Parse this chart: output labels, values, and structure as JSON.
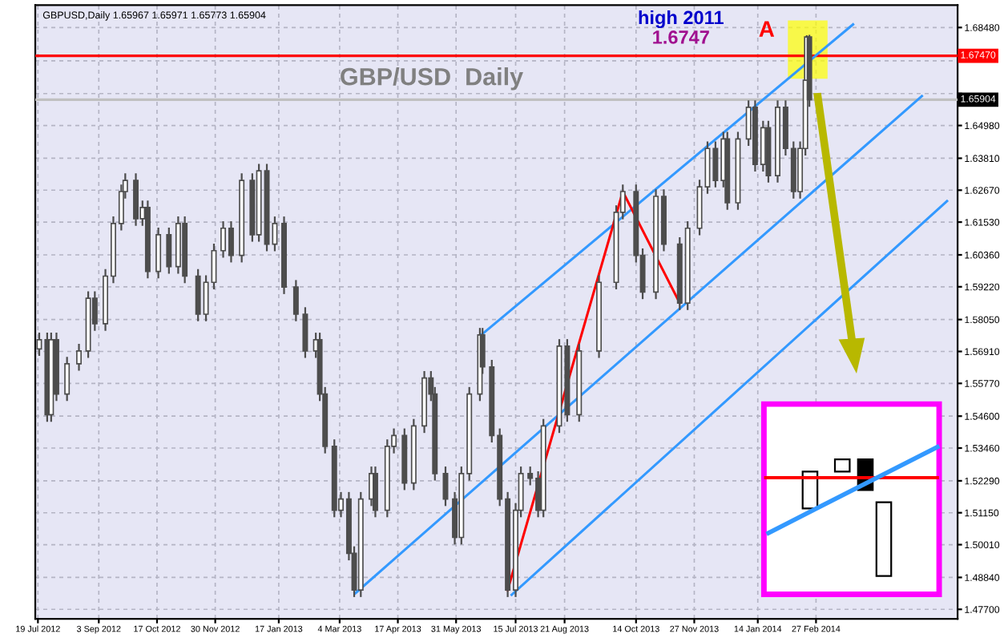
{
  "chart_data": {
    "type": "candlestick",
    "title": "GBP/USD  Daily",
    "subtitle": "GBPUSD,Daily 1.65967 1.65971 1.65773 1.65904",
    "annotations": [
      "high 2011",
      "1.6747",
      {
        "text": "A",
        "x": "2014-02-20",
        "y": 1.682
      }
    ],
    "color": "#4d4d4d",
    "x": [
      "2012-07-20",
      "2012-07-26",
      "2012-07-29",
      "2012-08-02",
      "2012-08-10",
      "2012-08-19",
      "2012-08-26",
      "2012-08-31",
      "2012-09-08",
      "2012-09-14",
      "2012-09-20",
      "2012-09-23",
      "2012-10-01",
      "2012-10-06",
      "2012-10-10",
      "2012-10-18",
      "2012-10-26",
      "2012-11-02",
      "2012-11-07",
      "2012-11-17",
      "2012-11-23",
      "2012-11-29",
      "2012-12-06",
      "2012-12-12",
      "2012-12-20",
      "2012-12-28",
      "2013-01-02",
      "2013-01-08",
      "2013-01-14",
      "2013-01-21",
      "2013-01-30",
      "2013-02-06",
      "2013-02-14",
      "2013-02-17",
      "2013-02-21",
      "2013-02-28",
      "2013-03-05",
      "2013-03-11",
      "2013-03-15",
      "2013-03-20",
      "2013-03-28",
      "2013-03-31",
      "2013-04-09",
      "2013-04-14",
      "2013-04-22",
      "2013-04-29",
      "2013-05-07",
      "2013-05-12",
      "2013-05-15",
      "2013-05-23",
      "2013-05-30",
      "2013-06-04",
      "2013-06-10",
      "2013-06-18",
      "2013-06-20",
      "2013-06-27",
      "2013-07-03",
      "2013-07-09",
      "2013-07-15",
      "2013-07-19",
      "2013-07-26",
      "2013-08-01",
      "2013-08-05",
      "2013-08-17",
      "2013-08-23",
      "2013-09-01",
      "2013-09-16",
      "2013-09-29",
      "2013-10-04",
      "2013-10-14",
      "2013-10-19",
      "2013-10-29",
      "2013-11-04",
      "2013-11-16",
      "2013-11-22",
      "2013-12-01",
      "2013-12-07",
      "2013-12-13",
      "2013-12-19",
      "2013-12-22",
      "2013-12-30",
      "2014-01-07",
      "2014-01-12",
      "2014-01-18",
      "2014-01-22",
      "2014-01-29",
      "2014-02-04",
      "2014-02-10",
      "2014-02-15",
      "2014-02-19",
      "2014-02-20",
      "2014-02-22"
    ],
    "ohlc": [
      [
        1.57,
        1.5758,
        1.5675,
        1.5733
      ],
      [
        1.5733,
        1.5758,
        1.544,
        1.5465
      ],
      [
        1.5465,
        1.5758,
        1.544,
        1.5733
      ],
      [
        1.5733,
        1.5758,
        1.5514,
        1.5539
      ],
      [
        1.5539,
        1.5672,
        1.5514,
        1.5647
      ],
      [
        1.5647,
        1.5718,
        1.5622,
        1.5693
      ],
      [
        1.5693,
        1.5906,
        1.5668,
        1.5881
      ],
      [
        1.5881,
        1.5906,
        1.5765,
        1.579
      ],
      [
        1.579,
        1.5985,
        1.5765,
        1.596
      ],
      [
        1.596,
        1.6173,
        1.5935,
        1.6148
      ],
      [
        1.6148,
        1.6287,
        1.6123,
        1.6262
      ],
      [
        1.6262,
        1.6327,
        1.6237,
        1.6302
      ],
      [
        1.6302,
        1.6327,
        1.614,
        1.6165
      ],
      [
        1.6165,
        1.623,
        1.614,
        1.6205
      ],
      [
        1.6205,
        1.623,
        1.5952,
        1.5977
      ],
      [
        1.5977,
        1.6133,
        1.5952,
        1.6108
      ],
      [
        1.6108,
        1.6133,
        1.5969,
        1.5994
      ],
      [
        1.5994,
        1.6173,
        1.5969,
        1.6148
      ],
      [
        1.6148,
        1.6173,
        1.5935,
        1.596
      ],
      [
        1.596,
        1.5985,
        1.5799,
        1.5824
      ],
      [
        1.5824,
        1.5963,
        1.5799,
        1.5938
      ],
      [
        1.5938,
        1.6076,
        1.5913,
        1.6051
      ],
      [
        1.6051,
        1.6156,
        1.6026,
        1.6131
      ],
      [
        1.6131,
        1.6156,
        1.6009,
        1.6034
      ],
      [
        1.6034,
        1.6327,
        1.6009,
        1.6302
      ],
      [
        1.6302,
        1.6327,
        1.6083,
        1.6108
      ],
      [
        1.6108,
        1.6361,
        1.6083,
        1.6336
      ],
      [
        1.6336,
        1.6361,
        1.6049,
        1.6074
      ],
      [
        1.6074,
        1.6173,
        1.6049,
        1.6148
      ],
      [
        1.6148,
        1.6173,
        1.5896,
        1.5921
      ],
      [
        1.5921,
        1.5946,
        1.5799,
        1.5824
      ],
      [
        1.5824,
        1.5849,
        1.5668,
        1.5693
      ],
      [
        1.5693,
        1.5758,
        1.5668,
        1.5733
      ],
      [
        1.5733,
        1.5758,
        1.5514,
        1.5539
      ],
      [
        1.5539,
        1.5564,
        1.5327,
        1.5352
      ],
      [
        1.5352,
        1.5377,
        1.5099,
        1.5124
      ],
      [
        1.5124,
        1.5189,
        1.5099,
        1.5164
      ],
      [
        1.5164,
        1.5189,
        1.4945,
        1.497
      ],
      [
        1.497,
        1.4995,
        1.4814,
        1.4839
      ],
      [
        1.4839,
        1.5189,
        1.4814,
        1.5164
      ],
      [
        1.5164,
        1.528,
        1.5139,
        1.5255
      ],
      [
        1.5255,
        1.528,
        1.5099,
        1.5124
      ],
      [
        1.5124,
        1.5377,
        1.5099,
        1.5352
      ],
      [
        1.5352,
        1.5416,
        1.5327,
        1.5391
      ],
      [
        1.5391,
        1.5416,
        1.5196,
        1.5221
      ],
      [
        1.5221,
        1.545,
        1.5196,
        1.5425
      ],
      [
        1.5425,
        1.5621,
        1.54,
        1.5596
      ],
      [
        1.5596,
        1.5621,
        1.5514,
        1.5539
      ],
      [
        1.5539,
        1.5564,
        1.523,
        1.5255
      ],
      [
        1.5255,
        1.528,
        1.5139,
        1.5164
      ],
      [
        1.5164,
        1.5189,
        1.5002,
        1.5027
      ],
      [
        1.5027,
        1.528,
        1.5002,
        1.5255
      ],
      [
        1.5255,
        1.5564,
        1.523,
        1.5539
      ],
      [
        1.5539,
        1.5775,
        1.5514,
        1.575
      ],
      [
        1.575,
        1.5775,
        1.5611,
        1.5636
      ],
      [
        1.5636,
        1.5661,
        1.5366,
        1.5391
      ],
      [
        1.5391,
        1.5416,
        1.5139,
        1.5164
      ],
      [
        1.5164,
        1.5189,
        1.4814,
        1.4839
      ],
      [
        1.4839,
        1.5149,
        1.4814,
        1.5124
      ],
      [
        1.5124,
        1.528,
        1.5099,
        1.5255
      ],
      [
        1.5255,
        1.528,
        1.5213,
        1.5238
      ],
      [
        1.5238,
        1.5263,
        1.5099,
        1.5124
      ],
      [
        1.5124,
        1.545,
        1.5099,
        1.5425
      ],
      [
        1.5425,
        1.5735,
        1.54,
        1.571
      ],
      [
        1.571,
        1.5735,
        1.544,
        1.5465
      ],
      [
        1.5465,
        1.5718,
        1.544,
        1.5693
      ],
      [
        1.5693,
        1.5963,
        1.5668,
        1.5938
      ],
      [
        1.5938,
        1.6213,
        1.5913,
        1.6188
      ],
      [
        1.6188,
        1.6287,
        1.6163,
        1.6262
      ],
      [
        1.6262,
        1.6287,
        1.6009,
        1.6034
      ],
      [
        1.6034,
        1.6059,
        1.5878,
        1.5903
      ],
      [
        1.5903,
        1.627,
        1.5878,
        1.6245
      ],
      [
        1.6245,
        1.627,
        1.6049,
        1.6074
      ],
      [
        1.6074,
        1.6099,
        1.5839,
        1.5864
      ],
      [
        1.5864,
        1.6156,
        1.5839,
        1.6131
      ],
      [
        1.6131,
        1.6304,
        1.6106,
        1.6279
      ],
      [
        1.6279,
        1.6441,
        1.6254,
        1.6416
      ],
      [
        1.6416,
        1.6441,
        1.6277,
        1.6302
      ],
      [
        1.6302,
        1.6475,
        1.6277,
        1.645
      ],
      [
        1.645,
        1.6475,
        1.6197,
        1.6222
      ],
      [
        1.6222,
        1.6475,
        1.6197,
        1.645
      ],
      [
        1.645,
        1.6588,
        1.6425,
        1.6563
      ],
      [
        1.6563,
        1.6588,
        1.6334,
        1.6359
      ],
      [
        1.6359,
        1.6515,
        1.6334,
        1.649
      ],
      [
        1.649,
        1.6515,
        1.6294,
        1.6319
      ],
      [
        1.6319,
        1.6588,
        1.6294,
        1.6563
      ],
      [
        1.6563,
        1.6588,
        1.6391,
        1.6416
      ],
      [
        1.6416,
        1.6441,
        1.6237,
        1.6262
      ],
      [
        1.6262,
        1.6441,
        1.6237,
        1.6416
      ],
      [
        1.6416,
        1.6685,
        1.6391,
        1.666
      ],
      [
        1.666,
        1.682,
        1.6635,
        1.6814
      ],
      [
        1.6814,
        1.6822,
        1.6565,
        1.659
      ]
    ],
    "series": [
      {
        "type": "line",
        "color": "#3399ff",
        "x": [
          "2013-06-19",
          "2014-03-27"
        ],
        "values": [
          1.575,
          1.6859
        ]
      },
      {
        "type": "line",
        "color": "#3399ff",
        "x": [
          "2013-03-16",
          "2014-05-18"
        ],
        "values": [
          1.4828,
          1.6603
        ]
      },
      {
        "type": "line",
        "color": "#3399ff",
        "x": [
          "2013-07-12",
          "2014-06-06"
        ],
        "values": [
          1.4822,
          1.6228
        ]
      },
      {
        "type": "line",
        "color": "#ff0000",
        "x": [
          "2013-07-09",
          "2013-10-04",
          "2013-11-16"
        ],
        "values": [
          1.4839,
          1.6262,
          1.5864
        ]
      }
    ],
    "ref_lines": [
      {
        "axis": "y",
        "value": 1.6747,
        "label": "1.67470",
        "color": "#ff0000"
      },
      {
        "axis": "y",
        "value": 1.65904,
        "label": "1.65904",
        "color": "#c0c0c0"
      }
    ],
    "xlim": [
      "2012-07-17",
      "2014-06-14"
    ],
    "ylim": [
      1.4736,
      1.6928
    ],
    "xticks": [
      {
        "value": "2012-07-19",
        "label": "19 Jul 2012"
      },
      {
        "value": "2012-09-03",
        "label": "3 Sep 2012"
      },
      {
        "value": "2012-10-17",
        "label": "17 Oct 2012"
      },
      {
        "value": "2012-11-30",
        "label": "30 Nov 2012"
      },
      {
        "value": "2013-01-17",
        "label": "17 Jan 2013"
      },
      {
        "value": "2013-03-04",
        "label": "4 Mar 2013"
      },
      {
        "value": "2013-04-17",
        "label": "17 Apr 2013"
      },
      {
        "value": "2013-05-31",
        "label": "31 May 2013"
      },
      {
        "value": "2013-07-15",
        "label": "15 Jul 2013"
      },
      {
        "value": "2013-08-21",
        "label": "21 Aug 2013"
      },
      {
        "value": "2013-10-14",
        "label": "14 Oct 2013"
      },
      {
        "value": "2013-11-27",
        "label": "27 Nov 2013"
      },
      {
        "value": "2014-01-14",
        "label": "14 Jan 2014"
      },
      {
        "value": "2014-02-27",
        "label": "27 Feb 2014"
      }
    ],
    "yticks": [
      {
        "value": 1.477,
        "label": "1.47700"
      },
      {
        "value": 1.4884,
        "label": "1.48840"
      },
      {
        "value": 1.5001,
        "label": "1.50010"
      },
      {
        "value": 1.5115,
        "label": "1.51150"
      },
      {
        "value": 1.5229,
        "label": "1.52290"
      },
      {
        "value": 1.5346,
        "label": "1.53460"
      },
      {
        "value": 1.546,
        "label": "1.54600"
      },
      {
        "value": 1.5577,
        "label": "1.55770"
      },
      {
        "value": 1.5691,
        "label": "1.56910"
      },
      {
        "value": 1.5805,
        "label": "1.58050"
      },
      {
        "value": 1.5922,
        "label": "1.59220"
      },
      {
        "value": 1.6036,
        "label": "1.60360"
      },
      {
        "value": 1.6153,
        "label": "1.61530"
      },
      {
        "value": 1.6267,
        "label": "1.62670"
      },
      {
        "value": 1.6381,
        "label": "1.63810"
      },
      {
        "value": 1.6498,
        "label": "1.64980"
      },
      {
        "value": 1.6612,
        "label": null
      },
      {
        "value": 1.6729,
        "label": null
      },
      {
        "value": 1.6848,
        "label": "1.68480"
      }
    ],
    "grid": true
  }
}
